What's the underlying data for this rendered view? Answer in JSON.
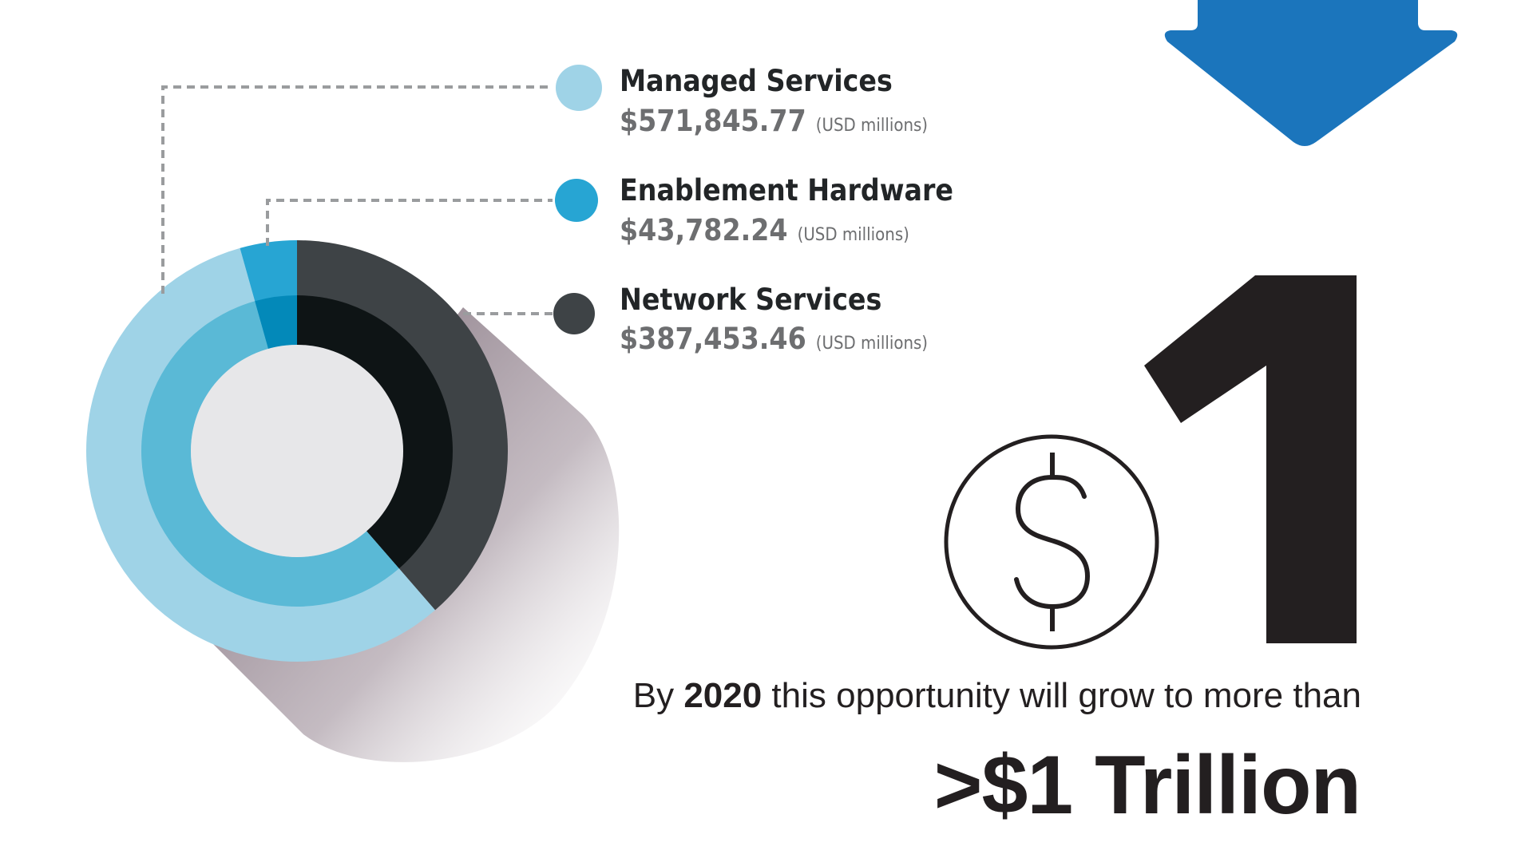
{
  "chart_data": {
    "type": "pie",
    "style": "donut",
    "series": [
      {
        "name": "Network Services",
        "value": 387453.46,
        "color": "#3e4346",
        "inner_color": "#0e1415"
      },
      {
        "name": "Managed Services",
        "value": 571845.77,
        "color": "#9fd3e7",
        "inner_color": "#5ab9d6"
      },
      {
        "name": "Enablement Hardware",
        "value": 43782.24,
        "color": "#27a5d3",
        "inner_color": "#0389b9"
      }
    ],
    "center_color": "#e7e7e9",
    "shadow_color": "#6b5966"
  },
  "legend": [
    {
      "name": "Managed Services",
      "value": "$571,845.77",
      "unit": "(USD millions)",
      "color": "#9fd3e7"
    },
    {
      "name": "Enablement Hardware",
      "value": "$43,782.24",
      "unit": "(USD millions)",
      "color": "#27a5d3"
    },
    {
      "name": "Network Services",
      "value": "$387,453.46",
      "unit": "(USD millions)",
      "color": "#3e4346"
    }
  ],
  "headline": {
    "big_digit": "1",
    "caption_pre": "By ",
    "caption_year": "2020",
    "caption_post": " this opportunity will grow to more than",
    "total": ">$1 Trillion"
  },
  "icons": {
    "dollar": "dollar-circle-icon",
    "arrow": "arrow-down-icon"
  },
  "colors": {
    "arrow": "#1b75bc",
    "text_dark": "#231f20",
    "text_gray": "#6d6e70"
  }
}
